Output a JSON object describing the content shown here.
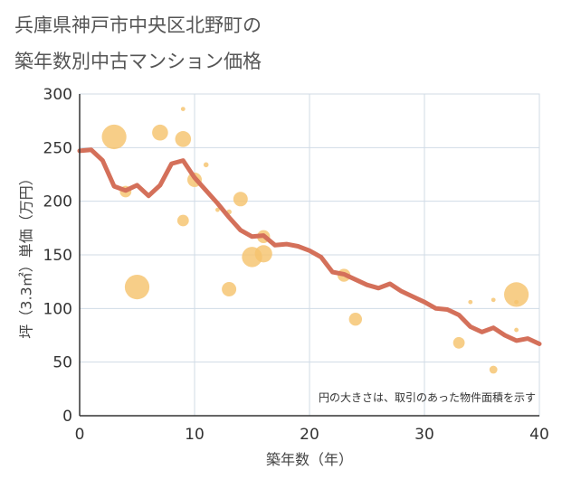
{
  "chart_data": {
    "type": "scatter",
    "title_lines": [
      "兵庫県神戸市中央区北野町の",
      "築年数別中古マンション価格"
    ],
    "xlabel": "築年数（年）",
    "ylabel": "坪（3.3㎡）単価（万円）",
    "xlim": [
      0,
      40
    ],
    "ylim": [
      0,
      300
    ],
    "x_ticks": [
      0,
      10,
      20,
      30,
      40
    ],
    "y_ticks": [
      0,
      50,
      100,
      150,
      200,
      250,
      300
    ],
    "grid": true,
    "note": "円の大きさは、取引のあった物件面積を示す",
    "colors": {
      "bubble": "#f5c36e",
      "line": "#d4705a",
      "grid": "#d0dbe6",
      "axis": "#333333"
    },
    "series": [
      {
        "kind": "bubble",
        "points": [
          {
            "x": 3,
            "y": 260,
            "s": 3.4
          },
          {
            "x": 4,
            "y": 209,
            "s": 1.6
          },
          {
            "x": 5,
            "y": 120,
            "s": 3.4
          },
          {
            "x": 7,
            "y": 264,
            "s": 2.2
          },
          {
            "x": 9,
            "y": 286,
            "s": 0.6
          },
          {
            "x": 9,
            "y": 258,
            "s": 2.2
          },
          {
            "x": 9,
            "y": 182,
            "s": 1.6
          },
          {
            "x": 10,
            "y": 220,
            "s": 2.0
          },
          {
            "x": 11,
            "y": 234,
            "s": 0.7
          },
          {
            "x": 12,
            "y": 192,
            "s": 0.6
          },
          {
            "x": 13,
            "y": 190,
            "s": 0.7
          },
          {
            "x": 13,
            "y": 118,
            "s": 2.0
          },
          {
            "x": 14,
            "y": 202,
            "s": 2.0
          },
          {
            "x": 15,
            "y": 148,
            "s": 2.8
          },
          {
            "x": 16,
            "y": 167,
            "s": 1.8
          },
          {
            "x": 16,
            "y": 151,
            "s": 2.4
          },
          {
            "x": 23,
            "y": 131,
            "s": 1.8
          },
          {
            "x": 24,
            "y": 90,
            "s": 1.8
          },
          {
            "x": 33,
            "y": 68,
            "s": 1.6
          },
          {
            "x": 34,
            "y": 106,
            "s": 0.6
          },
          {
            "x": 36,
            "y": 108,
            "s": 0.6
          },
          {
            "x": 36,
            "y": 43,
            "s": 1.1
          },
          {
            "x": 38,
            "y": 113,
            "s": 3.4
          },
          {
            "x": 38,
            "y": 106,
            "s": 0.6
          },
          {
            "x": 38,
            "y": 80,
            "s": 0.6
          }
        ]
      },
      {
        "kind": "line",
        "x": [
          0,
          1,
          2,
          3,
          4,
          5,
          6,
          7,
          8,
          9,
          10,
          11,
          12,
          13,
          14,
          15,
          16,
          17,
          18,
          19,
          20,
          21,
          22,
          23,
          24,
          25,
          26,
          27,
          28,
          29,
          30,
          31,
          32,
          33,
          34,
          35,
          36,
          37,
          38,
          39,
          40
        ],
        "y": [
          247,
          248,
          238,
          214,
          210,
          215,
          205,
          215,
          235,
          238,
          222,
          210,
          198,
          185,
          173,
          167,
          168,
          159,
          160,
          158,
          154,
          148,
          134,
          132,
          127,
          122,
          119,
          123,
          116,
          111,
          106,
          100,
          99,
          94,
          83,
          78,
          82,
          75,
          70,
          72,
          67
        ]
      }
    ]
  }
}
